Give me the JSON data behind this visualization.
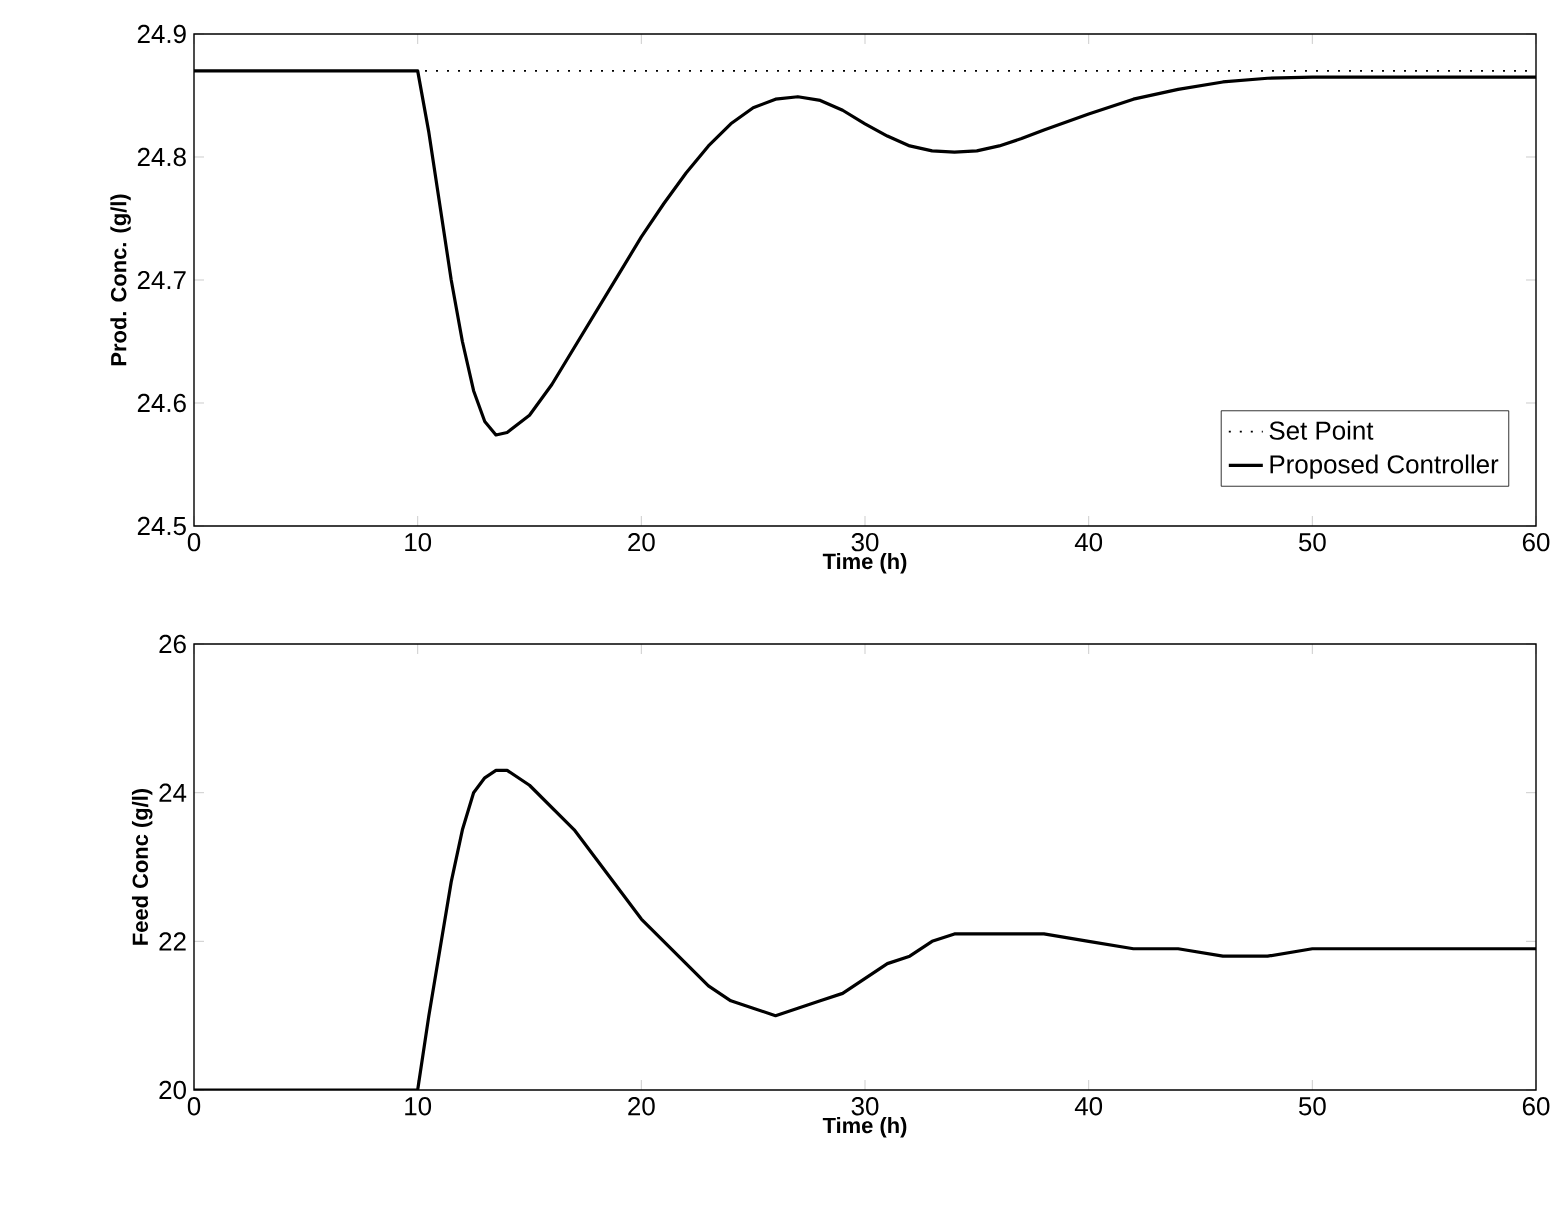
{
  "chart_data": [
    {
      "type": "line",
      "xlabel": "Time (h)",
      "ylabel": "Prod. Conc. (g/l)",
      "xlim": [
        0,
        60
      ],
      "xticks": [
        0,
        10,
        20,
        30,
        40,
        50,
        60
      ],
      "ylim": [
        24.5,
        24.9
      ],
      "yticks": [
        24.5,
        24.6,
        24.7,
        24.8,
        24.9
      ],
      "grid": false,
      "legend": "bottom right",
      "marker": "none",
      "series": [
        {
          "name": "Set Point",
          "color": "#000000",
          "line_style": "dotted",
          "x": [
            0,
            60
          ],
          "values": [
            24.87,
            24.87
          ]
        },
        {
          "name": "Proposed Controller",
          "color": "#000000",
          "line_style": "solid",
          "x": [
            0,
            10,
            10.5,
            11,
            11.5,
            12,
            12.5,
            13,
            13.5,
            14,
            15,
            16,
            17,
            18,
            19,
            20,
            21,
            22,
            23,
            24,
            25,
            26,
            27,
            28,
            29,
            30,
            31,
            32,
            33,
            34,
            35,
            36,
            37,
            38,
            40,
            42,
            44,
            46,
            48,
            50,
            55,
            60
          ],
          "values": [
            24.87,
            24.87,
            24.82,
            24.76,
            24.7,
            24.65,
            24.61,
            24.585,
            24.574,
            24.576,
            24.59,
            24.615,
            24.645,
            24.675,
            24.705,
            24.735,
            24.762,
            24.787,
            24.809,
            24.827,
            24.84,
            24.847,
            24.849,
            24.846,
            24.838,
            24.827,
            24.817,
            24.809,
            24.805,
            24.804,
            24.805,
            24.809,
            24.815,
            24.822,
            24.835,
            24.847,
            24.855,
            24.861,
            24.864,
            24.865,
            24.865,
            24.865
          ]
        }
      ]
    },
    {
      "type": "line",
      "xlabel": "Time (h)",
      "ylabel": "Feed Conc (g/l)",
      "xlim": [
        0,
        60
      ],
      "xticks": [
        0,
        10,
        20,
        30,
        40,
        50,
        60
      ],
      "ylim": [
        20,
        26
      ],
      "yticks": [
        20,
        22,
        24,
        26
      ],
      "grid": false,
      "legend": false,
      "marker": "none",
      "series": [
        {
          "color": "#000000",
          "line_style": "solid",
          "x": [
            0,
            10,
            10.5,
            11,
            11.5,
            12,
            12.5,
            13,
            13.5,
            14,
            15,
            16,
            17,
            18,
            19,
            20,
            21,
            22,
            23,
            24,
            25,
            26,
            27,
            28,
            29,
            30,
            31,
            32,
            33,
            34,
            35,
            36,
            37,
            38,
            40,
            42,
            44,
            46,
            48,
            50,
            52,
            55,
            58,
            60
          ],
          "values": [
            20,
            20,
            21.0,
            21.9,
            22.8,
            23.5,
            24.0,
            24.2,
            24.3,
            24.3,
            24.1,
            23.8,
            23.5,
            23.1,
            22.7,
            22.3,
            22.0,
            21.7,
            21.4,
            21.2,
            21.1,
            21.0,
            21.1,
            21.2,
            21.3,
            21.5,
            21.7,
            21.8,
            22.0,
            22.1,
            22.1,
            22.1,
            22.1,
            22.1,
            22.0,
            21.9,
            21.9,
            21.8,
            21.8,
            21.9,
            21.9,
            21.9,
            21.9,
            21.9
          ]
        }
      ]
    }
  ]
}
